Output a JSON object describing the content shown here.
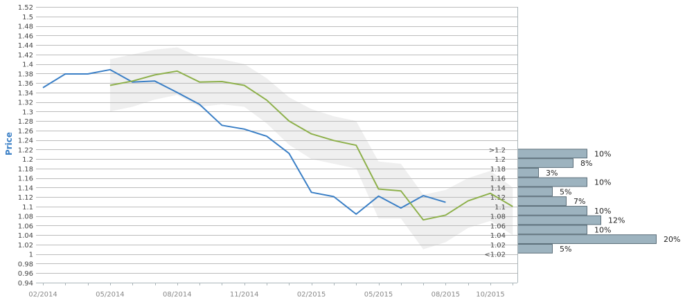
{
  "chart_data": {
    "type": "line",
    "ylabel": "Price",
    "xlabel": "",
    "ylim": [
      0.94,
      1.52
    ],
    "ytick_step": 0.02,
    "y_ticks": [
      "1.52",
      "1.5",
      "1.48",
      "1.46",
      "1.44",
      "1.42",
      "1.4",
      "1.38",
      "1.36",
      "1.34",
      "1.32",
      "1.3",
      "1.28",
      "1.26",
      "1.24",
      "1.22",
      "1.2",
      "1.18",
      "1.16",
      "1.14",
      "1.12",
      "1.1",
      "1.08",
      "1.06",
      "1.04",
      "1.02",
      "1",
      "0.98",
      "0.96",
      "0.94"
    ],
    "x_ticks": [
      "02/2014",
      "05/2014",
      "08/2014",
      "11/2014",
      "02/2015",
      "05/2015",
      "08/2015",
      "10/2015"
    ],
    "grid": true,
    "colors": {
      "actual": "#3a7fc6",
      "forecast": "#8db04a",
      "band": "#efefef",
      "bar_fill": "#9db3bf",
      "bar_stroke": "#5a6d78",
      "grid": "#bbbbbb",
      "axis": "#a9b4b8",
      "ylabel": "#3a7fc6"
    },
    "series": [
      {
        "key": "actual",
        "months": [
          "2014-02",
          "2014-03",
          "2014-04",
          "2014-05",
          "2014-06",
          "2014-07",
          "2014-08",
          "2014-09",
          "2014-10",
          "2014-11",
          "2014-12",
          "2015-01",
          "2015-02",
          "2015-03",
          "2015-04",
          "2015-05",
          "2015-06",
          "2015-07",
          "2015-08"
        ],
        "values": [
          1.35,
          1.379,
          1.379,
          1.388,
          1.362,
          1.364,
          1.34,
          1.315,
          1.271,
          1.263,
          1.248,
          1.212,
          1.13,
          1.121,
          1.084,
          1.122,
          1.097,
          1.123,
          1.109
        ]
      },
      {
        "key": "forecast",
        "months": [
          "2014-05",
          "2014-06",
          "2014-07",
          "2014-08",
          "2014-09",
          "2014-10",
          "2014-11",
          "2014-12",
          "2015-01",
          "2015-02",
          "2015-03",
          "2015-04",
          "2015-05",
          "2015-06",
          "2015-07",
          "2015-08",
          "2015-09",
          "2015-10",
          "2015-11"
        ],
        "values": [
          1.355,
          1.364,
          1.377,
          1.385,
          1.362,
          1.363,
          1.355,
          1.324,
          1.28,
          1.253,
          1.239,
          1.229,
          1.137,
          1.133,
          1.072,
          1.082,
          1.112,
          1.128,
          1.1
        ]
      }
    ],
    "band": {
      "months": [
        "2014-05",
        "2014-06",
        "2014-07",
        "2014-08",
        "2014-09",
        "2014-10",
        "2014-11",
        "2014-12",
        "2015-01",
        "2015-02",
        "2015-03",
        "2015-04",
        "2015-05",
        "2015-06",
        "2015-07",
        "2015-08",
        "2015-09",
        "2015-10",
        "2015-11"
      ],
      "upper": [
        1.41,
        1.42,
        1.43,
        1.435,
        1.415,
        1.41,
        1.4,
        1.37,
        1.33,
        1.305,
        1.29,
        1.28,
        1.195,
        1.19,
        1.125,
        1.135,
        1.16,
        1.175,
        1.14
      ],
      "lower": [
        1.3,
        1.31,
        1.325,
        1.335,
        1.31,
        1.315,
        1.31,
        1.275,
        1.23,
        1.2,
        1.19,
        1.18,
        1.075,
        1.075,
        1.01,
        1.025,
        1.055,
        1.07,
        1.04
      ]
    },
    "distribution": {
      "type": "bar",
      "categories": [
        ">1.2",
        "1.2",
        "1.18",
        "1.16",
        "1.14",
        "1.12",
        "1.1",
        "1.08",
        "1.06",
        "1.04",
        "1.02",
        "<1.02"
      ],
      "values": [
        10,
        8,
        3,
        10,
        5,
        7,
        10,
        12,
        10,
        20,
        5,
        null
      ],
      "labels": [
        "10%",
        "8%",
        "3%",
        "10%",
        "5%",
        "7%",
        "10%",
        "12%",
        "10%",
        "20%",
        "5%",
        ""
      ]
    }
  }
}
